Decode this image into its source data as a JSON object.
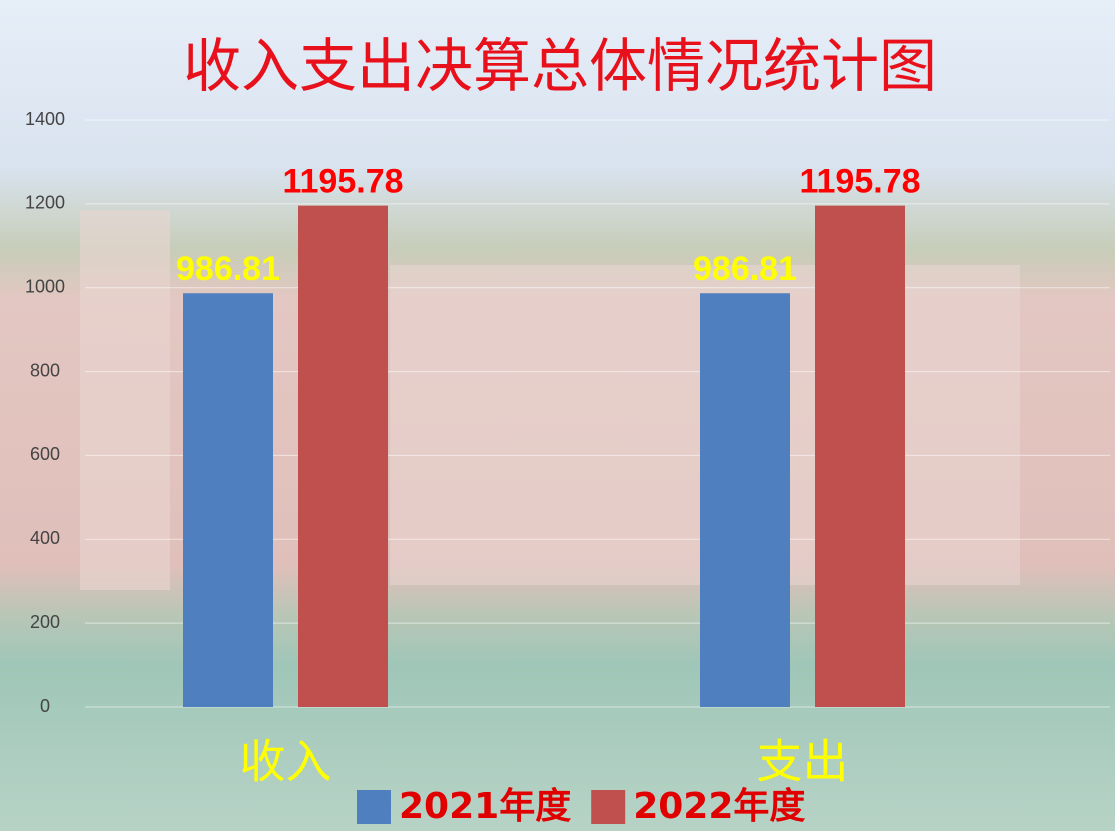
{
  "chart_data": {
    "type": "bar",
    "title": "收入支出决算总体情况统计图",
    "categories": [
      "收入",
      "支出"
    ],
    "series": [
      {
        "name": "2021年度",
        "color": "#4f7fbf",
        "label_color": "#ffff00",
        "values": [
          986.81,
          986.81
        ]
      },
      {
        "name": "2022年度",
        "color": "#c0504d",
        "label_color": "#ff0000",
        "values": [
          1195.78,
          1195.78
        ]
      }
    ],
    "ylim": [
      0,
      1400
    ],
    "yticks": [
      0,
      200,
      400,
      600,
      800,
      1000,
      1200,
      1400
    ],
    "grid": true,
    "legend": "bottom"
  }
}
